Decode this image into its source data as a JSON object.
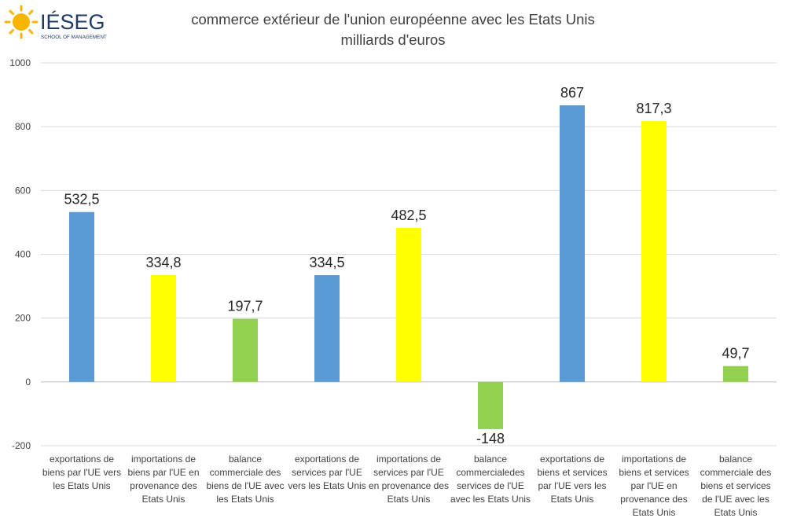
{
  "logo": {
    "brand": "IÉSEG",
    "tagline": "SCHOOL OF MANAGEMENT"
  },
  "chart_data": {
    "type": "bar",
    "title": "commerce extérieur de l'union européenne avec les Etats Unis",
    "subtitle": "milliards d'euros",
    "xlabel": "",
    "ylabel": "",
    "ylim": [
      -200,
      1000
    ],
    "yticks": [
      -200,
      0,
      200,
      400,
      600,
      800,
      1000
    ],
    "grid": true,
    "legend": "none",
    "categories": [
      "exportations de biens par l'UE vers les Etats Unis",
      "importations de biens par l'UE en provenance des Etats Unis",
      "balance commerciale des biens de l'UE avec les Etats Unis",
      "exportations de services par l'UE vers les Etats Unis",
      "importations de services par l'UE en provenance des Etats Unis",
      "balance commercialedes services de l'UE avec les Etats Unis",
      "exportations de biens et services par l'UE vers les Etats Unis",
      "importations de biens et services par l'UE en provenance des Etats Unis",
      "balance commerciale des biens et services de l'UE avec les Etats Unis"
    ],
    "values": [
      532.5,
      334.8,
      197.7,
      334.5,
      482.5,
      -148,
      867,
      817.3,
      49.7
    ],
    "value_labels": [
      "532,5",
      "334,8",
      "197,7",
      "334,5",
      "482,5",
      "-148",
      "867",
      "817,3",
      "49,7"
    ],
    "colors": [
      "#5b9bd5",
      "#ffff00",
      "#92d050",
      "#5b9bd5",
      "#ffff00",
      "#92d050",
      "#5b9bd5",
      "#ffff00",
      "#92d050"
    ]
  },
  "category_lines": [
    [
      "exportations de",
      "biens par l'UE vers",
      "les Etats Unis"
    ],
    [
      "importations de",
      "biens par l'UE en",
      "provenance des",
      "Etats Unis"
    ],
    [
      "balance",
      "commerciale des",
      "biens de l'UE avec",
      "les Etats Unis"
    ],
    [
      "exportations de",
      "services par l'UE",
      "vers les Etats Unis"
    ],
    [
      "importations de",
      "services par l'UE",
      "en provenance des",
      "Etats Unis"
    ],
    [
      "balance",
      "commercialedes",
      "services de l'UE",
      "avec les Etats Unis"
    ],
    [
      "exportations de",
      "biens et services",
      "par l'UE vers les",
      "Etats Unis"
    ],
    [
      "importations de",
      "biens et services",
      "par l'UE en",
      "provenance des",
      "Etats Unis"
    ],
    [
      "balance",
      "commerciale des",
      "biens et services",
      "de l'UE avec les",
      "Etats Unis"
    ]
  ]
}
